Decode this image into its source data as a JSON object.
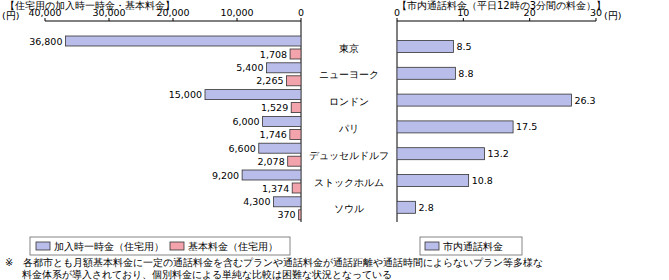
{
  "chart_data": [
    {
      "type": "bar",
      "orientation": "horizontal",
      "title": "【住宅用の加入時一時金・基本料金】",
      "xlabel": "(円)",
      "categories": [
        "東京",
        "ニューヨーク",
        "ロンドン",
        "パリ",
        "デュッセルドルフ",
        "ストックホルム",
        "ソウル"
      ],
      "series": [
        {
          "name": "加入時一時金（住宅用）",
          "color": "#b9bdea",
          "values": [
            36800,
            5400,
            15000,
            6000,
            6600,
            9200,
            4300
          ],
          "value_labels": [
            "36,800",
            "5,400",
            "15,000",
            "6,000",
            "6,600",
            "9,200",
            "4,300"
          ]
        },
        {
          "name": "基本料金（住宅用）",
          "color": "#f2a3ab",
          "values": [
            1708,
            2265,
            1529,
            1746,
            2078,
            1374,
            370
          ],
          "value_labels": [
            "1,708",
            "2,265",
            "1,529",
            "1,746",
            "2,078",
            "1,374",
            "370"
          ]
        }
      ],
      "xlim": [
        40000,
        0
      ],
      "xticks": [
        {
          "value": 40000,
          "label": "40,000"
        },
        {
          "value": 30000,
          "label": "30,000"
        },
        {
          "value": 20000,
          "label": "20,000"
        },
        {
          "value": 10000,
          "label": "10,000"
        },
        0
      ],
      "data_labels": true,
      "legend": "bottom",
      "grid": false
    },
    {
      "type": "bar",
      "orientation": "horizontal",
      "title": "【市内通話料金（平日12時の3分間の料金）】",
      "xlabel": "(円)",
      "categories": [
        "東京",
        "ニューヨーク",
        "ロンドン",
        "パリ",
        "デュッセルドルフ",
        "ストックホルム",
        "ソウル"
      ],
      "series": [
        {
          "name": "市内通話料金",
          "color": "#b9bdea",
          "values": [
            8.5,
            8.8,
            26.3,
            17.5,
            13.2,
            10.8,
            2.8
          ]
        }
      ],
      "xlim": [
        0,
        30
      ],
      "xticks": [
        0,
        10,
        20,
        30
      ],
      "data_labels": true,
      "legend": "bottom",
      "grid": false
    }
  ],
  "note": [
    "※　各都市とも月額基本料金に一定の通話料金を含むプランや通話料金が通話距離や通話時間によらないプラン等多様な",
    "料金体系が導入されており、個別料金による単純な比較は困難な状況となっている"
  ]
}
